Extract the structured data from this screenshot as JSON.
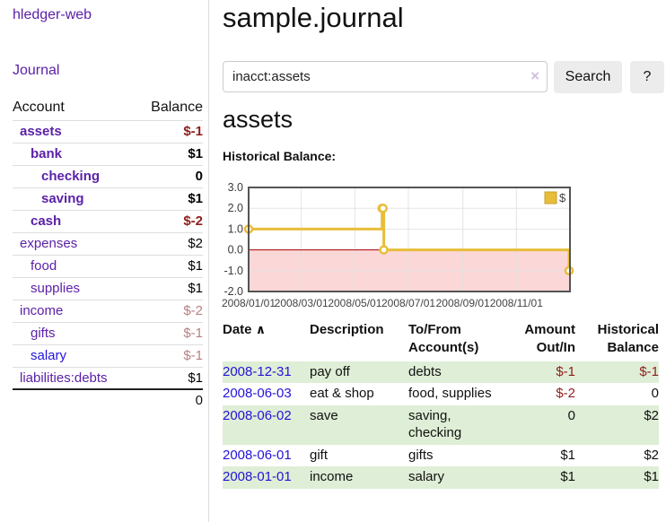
{
  "app": {
    "title": "hledger-web",
    "nav_journal": "Journal"
  },
  "colors": {
    "link_purple": "#5b21a8",
    "link_blue": "#2314d9",
    "negative_strong": "#8f1d1d",
    "negative_muted": "#b97f7f",
    "row_green": "#dfeed6",
    "chart_line": "#e8bd3a",
    "chart_negative_bg": "#fcd7d7",
    "chart_zero_line": "#a40000",
    "chart_border": "#545454",
    "chart_grid": "#e2e2e2"
  },
  "sidebar": {
    "header": {
      "account": "Account",
      "balance": "Balance"
    },
    "accounts": [
      {
        "name": "assets",
        "level": 1,
        "bold": true,
        "balance": "$-1",
        "balance_style": "neg-strong",
        "link_color": "purple"
      },
      {
        "name": "bank",
        "level": 2,
        "bold": true,
        "balance": "$1",
        "balance_style": "pos",
        "link_color": "purple"
      },
      {
        "name": "checking",
        "level": 3,
        "bold": true,
        "balance": "0",
        "balance_style": "pos",
        "link_color": "purple"
      },
      {
        "name": "saving",
        "level": 3,
        "bold": true,
        "balance": "$1",
        "balance_style": "pos",
        "link_color": "purple"
      },
      {
        "name": "cash",
        "level": 2,
        "bold": true,
        "balance": "$-2",
        "balance_style": "neg-strong",
        "link_color": "purple"
      },
      {
        "name": "expenses",
        "level": 1,
        "bold": false,
        "balance": "$2",
        "balance_style": "pos",
        "link_color": "purple"
      },
      {
        "name": "food",
        "level": 2,
        "bold": false,
        "balance": "$1",
        "balance_style": "pos",
        "link_color": "purple"
      },
      {
        "name": "supplies",
        "level": 2,
        "bold": false,
        "balance": "$1",
        "balance_style": "pos",
        "link_color": "purple"
      },
      {
        "name": "income",
        "level": 1,
        "bold": false,
        "balance": "$-2",
        "balance_style": "neg-muted",
        "link_color": "purple"
      },
      {
        "name": "gifts",
        "level": 2,
        "bold": false,
        "balance": "$-1",
        "balance_style": "neg-muted",
        "link_color": "purple"
      },
      {
        "name": "salary",
        "level": 2,
        "bold": false,
        "balance": "$-1",
        "balance_style": "neg-muted",
        "link_color": "blue"
      },
      {
        "name": "liabilities:debts",
        "level": 1,
        "bold": false,
        "balance": "$1",
        "balance_style": "pos",
        "link_color": "purple"
      }
    ],
    "total": "0"
  },
  "main": {
    "title": "sample.journal",
    "search": {
      "value": "inacct:assets",
      "clear_icon": "×",
      "button": "Search",
      "help_button": "?"
    },
    "account_title": "assets",
    "chart_label": "Historical Balance:"
  },
  "chart_data": {
    "type": "line",
    "title": "Historical Balance",
    "step": true,
    "series": [
      {
        "name": "$",
        "points": [
          [
            "2008-01-01",
            1
          ],
          [
            "2008-06-01",
            2
          ],
          [
            "2008-06-02",
            2
          ],
          [
            "2008-06-03",
            0
          ],
          [
            "2008-12-31",
            -1
          ]
        ]
      }
    ],
    "x_range": [
      "2008-01-01",
      "2009-01-01"
    ],
    "x_ticks": [
      "2008-01-01",
      "2008-03-01",
      "2008-05-01",
      "2008-07-01",
      "2008-09-01",
      "2008-11-01",
      "2009-01-01"
    ],
    "x_tick_labels": [
      "2008/01/01",
      "2008/03/01",
      "2008/05/01",
      "2008/07/01",
      "2008/09/01",
      "2008/11/01"
    ],
    "y_ticks": [
      3.0,
      2.0,
      1.0,
      0.0,
      -1.0,
      -2.0
    ],
    "ylim": [
      -2,
      3
    ],
    "legend": "$",
    "legend_position": "top-right",
    "grid": true
  },
  "register": {
    "headers": [
      [
        "Date",
        ""
      ],
      [
        "Description",
        ""
      ],
      [
        "To/From",
        "Account(s)"
      ],
      [
        "Amount",
        "Out/In"
      ],
      [
        "Historical",
        "Balance"
      ]
    ],
    "sort_indicator": "∧",
    "rows": [
      {
        "date": "2008-12-31",
        "description": "pay off",
        "accounts": "debts",
        "amount": "$-1",
        "amount_neg": true,
        "balance": "$-1",
        "balance_neg": true,
        "green": true
      },
      {
        "date": "2008-06-03",
        "description": "eat & shop",
        "accounts": "food, supplies",
        "amount": "$-2",
        "amount_neg": true,
        "balance": "0",
        "balance_neg": false,
        "green": false
      },
      {
        "date": "2008-06-02",
        "description": "save",
        "accounts": "saving,\nchecking",
        "amount": "0",
        "amount_neg": false,
        "balance": "$2",
        "balance_neg": false,
        "green": true
      },
      {
        "date": "2008-06-01",
        "description": "gift",
        "accounts": "gifts",
        "amount": "$1",
        "amount_neg": false,
        "balance": "$2",
        "balance_neg": false,
        "green": false
      },
      {
        "date": "2008-01-01",
        "description": "income",
        "accounts": "salary",
        "amount": "$1",
        "amount_neg": false,
        "balance": "$1",
        "balance_neg": false,
        "green": true
      }
    ]
  }
}
